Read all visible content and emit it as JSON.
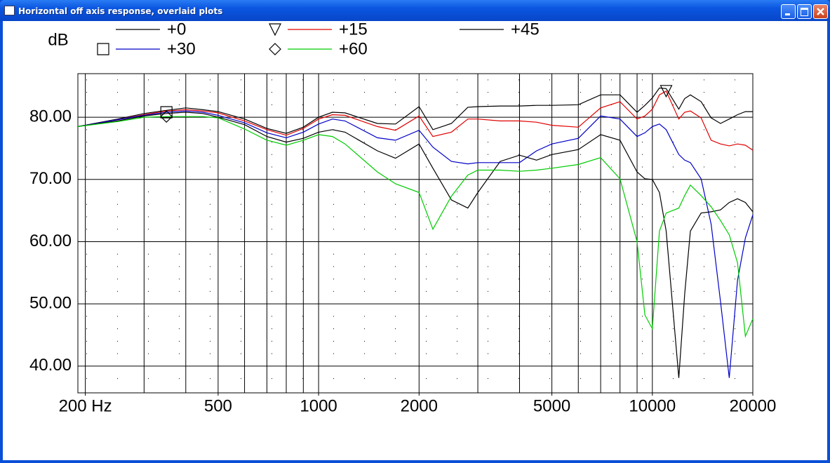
{
  "window": {
    "title": "Horizontal off axis response, overlaid plots"
  },
  "chart_data": {
    "type": "line",
    "y_label": "dB",
    "log_x": true,
    "xlim": [
      190,
      20000
    ],
    "ylim": [
      35.7,
      87
    ],
    "xticks": [
      {
        "value": 200,
        "label": "200 Hz"
      },
      500,
      1000,
      2000,
      5000,
      10000,
      20000
    ],
    "x_gridlines": [
      200,
      300,
      400,
      500,
      600,
      700,
      800,
      900,
      1000,
      2000,
      3000,
      4000,
      5000,
      6000,
      7000,
      8000,
      9000,
      10000,
      20000
    ],
    "yticks": [
      {
        "value": 40,
        "label": "40.00"
      },
      {
        "value": 50,
        "label": "50.00"
      },
      {
        "value": 60,
        "label": "60.00"
      },
      {
        "value": 70,
        "label": "70.00"
      },
      {
        "value": 80,
        "label": "80.00"
      }
    ],
    "y_minor_gridlines": [
      38,
      42,
      44,
      46,
      48,
      52,
      54,
      56,
      58,
      62,
      64,
      66,
      68,
      72,
      74,
      76,
      78,
      82,
      84,
      86
    ],
    "x": [
      190,
      250,
      300,
      350,
      400,
      450,
      500,
      600,
      700,
      800,
      900,
      1000,
      1100,
      1200,
      1500,
      1700,
      2000,
      2200,
      2500,
      2800,
      3000,
      3500,
      4000,
      4500,
      5000,
      6000,
      7000,
      8000,
      9000,
      9500,
      10000,
      10500,
      11000,
      12000,
      12500,
      13000,
      14000,
      15000,
      16000,
      17000,
      18000,
      19000,
      20000
    ],
    "series": [
      {
        "name": "+0",
        "color": "#000000",
        "marker": "none",
        "values": [
          78.5,
          79.7,
          80.6,
          81.1,
          81.5,
          81.2,
          80.9,
          79.7,
          78.2,
          77.4,
          78.4,
          80,
          80.8,
          80.7,
          79,
          78.9,
          81.7,
          78,
          79,
          81.6,
          81.7,
          81.8,
          81.8,
          81.9,
          81.9,
          82,
          83.6,
          83.6,
          80.8,
          81.9,
          83.1,
          84.7,
          84.6,
          81.3,
          83,
          83.6,
          82.5,
          79.9,
          79,
          79.7,
          80.4,
          80.9,
          80.9
        ]
      },
      {
        "name": "+15",
        "color": "#e00000",
        "marker": "triangle",
        "values": [
          78.5,
          79.6,
          80.4,
          81,
          81.2,
          81,
          80.7,
          79.4,
          78,
          77.1,
          78.2,
          79.7,
          80.4,
          80.3,
          78.5,
          77.9,
          80.2,
          76.9,
          77.6,
          79.7,
          79.7,
          79.4,
          79.4,
          79.2,
          78.7,
          78.4,
          81.5,
          82.5,
          79.7,
          80.2,
          81.3,
          83.6,
          84.2,
          79.7,
          80.8,
          81,
          79.9,
          76.3,
          75.7,
          75.4,
          75.7,
          75.5,
          74.7
        ]
      },
      {
        "name": "+30",
        "color": "#0000c8",
        "marker": "square",
        "values": [
          78.5,
          79.6,
          80.3,
          80.8,
          81,
          80.8,
          80.3,
          79.1,
          77.5,
          76.7,
          77.6,
          78.9,
          79.7,
          79.4,
          76.7,
          76.3,
          77.9,
          75.2,
          72.9,
          72.5,
          72.7,
          72.7,
          72.7,
          74.6,
          75.7,
          76.6,
          80.2,
          79.7,
          76.9,
          77.5,
          78.5,
          78.9,
          78,
          74,
          73.1,
          72.7,
          70.1,
          62.8,
          50.4,
          38.1,
          53.8,
          60.6,
          64.3
        ]
      },
      {
        "name": "+45",
        "color": "#000000",
        "marker": "none",
        "values": [
          78.5,
          79.4,
          80.2,
          80.6,
          80.8,
          80.6,
          80,
          78.8,
          76.9,
          76,
          76.6,
          77.6,
          78,
          77.6,
          74.6,
          73.4,
          75.7,
          71.8,
          66.7,
          65.4,
          67.9,
          72.9,
          73.9,
          73.1,
          74,
          74.8,
          77.2,
          76.3,
          71.2,
          70.1,
          70,
          67.9,
          61.7,
          38.1,
          51.6,
          61.7,
          64.6,
          64.8,
          65.1,
          66.3,
          66.9,
          66.3,
          64.8
        ]
      },
      {
        "name": "+60",
        "color": "#00cc00",
        "marker": "diamond",
        "values": [
          78.5,
          79.3,
          80,
          80.1,
          80.1,
          80.1,
          79.9,
          78.1,
          76.3,
          75.5,
          76.3,
          77.2,
          76.9,
          75.7,
          71.2,
          69.3,
          67.9,
          62,
          67.3,
          70.7,
          71.5,
          71.5,
          71.3,
          71.5,
          71.8,
          72.4,
          73.5,
          70.1,
          60,
          48.2,
          46,
          61.7,
          64.6,
          65.4,
          67.4,
          69.1,
          67.4,
          65.6,
          63.4,
          61.1,
          56.6,
          44.8,
          47.6
        ]
      }
    ]
  }
}
